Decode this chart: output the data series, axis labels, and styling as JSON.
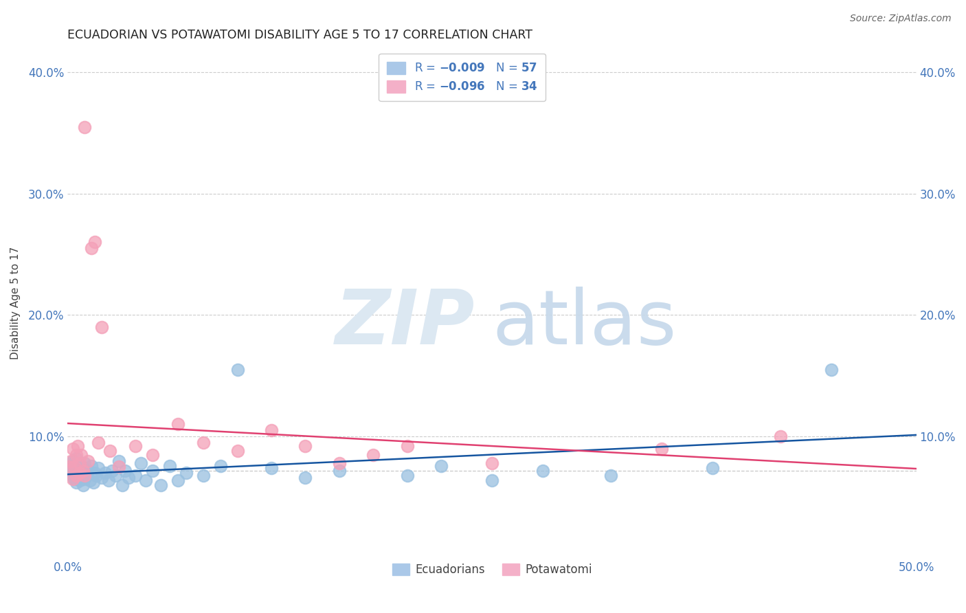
{
  "title": "ECUADORIAN VS POTAWATOMI DISABILITY AGE 5 TO 17 CORRELATION CHART",
  "source": "Source: ZipAtlas.com",
  "ylabel": "Disability Age 5 to 17",
  "xlim": [
    0.0,
    0.5
  ],
  "ylim": [
    0.0,
    0.42
  ],
  "xticks": [
    0.0,
    0.1,
    0.2,
    0.3,
    0.4,
    0.5
  ],
  "xticklabels": [
    "0.0%",
    "",
    "",
    "",
    "",
    "50.0%"
  ],
  "yticks": [
    0.0,
    0.1,
    0.2,
    0.3,
    0.4
  ],
  "yticklabels": [
    "",
    "10.0%",
    "20.0%",
    "30.0%",
    "40.0%"
  ],
  "blue_scatter_color": "#99c0e0",
  "pink_scatter_color": "#f4a0b8",
  "blue_line_color": "#1555a0",
  "pink_line_color": "#e04070",
  "tick_color": "#4477bb",
  "legend_text_color": "#4477bb",
  "watermark_zip_color": "#dde8f0",
  "watermark_atlas_color": "#c8d8ea",
  "background_color": "#ffffff",
  "grid_color": "#cccccc",
  "legend_ecuadorians": "Ecuadorians",
  "legend_potawatomi": "Potawatomi",
  "ecu_x": [
    0.001,
    0.002,
    0.003,
    0.003,
    0.004,
    0.004,
    0.005,
    0.005,
    0.005,
    0.006,
    0.006,
    0.007,
    0.007,
    0.008,
    0.008,
    0.009,
    0.009,
    0.01,
    0.01,
    0.011,
    0.012,
    0.013,
    0.014,
    0.015,
    0.016,
    0.017,
    0.018,
    0.02,
    0.022,
    0.024,
    0.026,
    0.028,
    0.03,
    0.032,
    0.034,
    0.036,
    0.04,
    0.043,
    0.046,
    0.05,
    0.055,
    0.06,
    0.065,
    0.07,
    0.08,
    0.09,
    0.1,
    0.12,
    0.14,
    0.16,
    0.2,
    0.22,
    0.25,
    0.28,
    0.32,
    0.38,
    0.45
  ],
  "ecu_y": [
    0.075,
    0.072,
    0.068,
    0.08,
    0.065,
    0.078,
    0.07,
    0.062,
    0.082,
    0.068,
    0.076,
    0.064,
    0.078,
    0.066,
    0.072,
    0.06,
    0.074,
    0.065,
    0.078,
    0.068,
    0.072,
    0.064,
    0.076,
    0.062,
    0.07,
    0.068,
    0.074,
    0.066,
    0.07,
    0.064,
    0.072,
    0.068,
    0.08,
    0.06,
    0.072,
    0.066,
    0.068,
    0.078,
    0.064,
    0.072,
    0.06,
    0.076,
    0.064,
    0.07,
    0.068,
    0.076,
    0.155,
    0.074,
    0.066,
    0.072,
    0.068,
    0.076,
    0.064,
    0.072,
    0.068,
    0.074,
    0.155
  ],
  "pot_x": [
    0.001,
    0.002,
    0.003,
    0.003,
    0.004,
    0.005,
    0.005,
    0.006,
    0.007,
    0.007,
    0.008,
    0.009,
    0.01,
    0.01,
    0.012,
    0.014,
    0.016,
    0.018,
    0.02,
    0.025,
    0.03,
    0.04,
    0.05,
    0.065,
    0.08,
    0.1,
    0.12,
    0.14,
    0.16,
    0.18,
    0.2,
    0.25,
    0.35,
    0.42
  ],
  "pot_y": [
    0.075,
    0.08,
    0.065,
    0.09,
    0.075,
    0.085,
    0.068,
    0.092,
    0.078,
    0.07,
    0.085,
    0.072,
    0.355,
    0.068,
    0.08,
    0.255,
    0.26,
    0.095,
    0.19,
    0.088,
    0.075,
    0.092,
    0.085,
    0.11,
    0.095,
    0.088,
    0.105,
    0.092,
    0.078,
    0.085,
    0.092,
    0.078,
    0.09,
    0.1
  ]
}
